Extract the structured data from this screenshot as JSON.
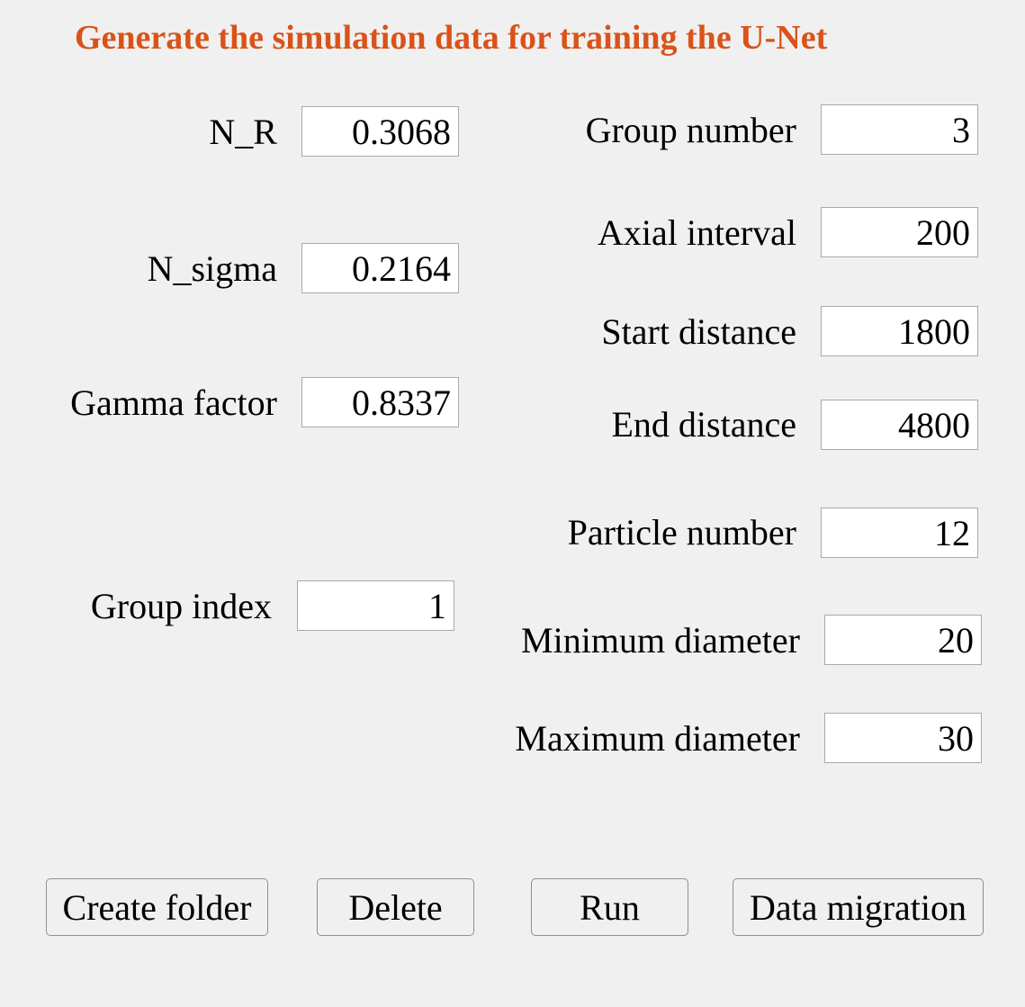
{
  "title": "Generate the simulation data for training the U-Net",
  "left_params": {
    "n_r": {
      "label": "N_R",
      "value": "0.3068"
    },
    "n_sigma": {
      "label": "N_sigma",
      "value": "0.2164"
    },
    "gamma_factor": {
      "label": "Gamma factor",
      "value": "0.8337"
    },
    "group_index": {
      "label": "Group index",
      "value": "1"
    }
  },
  "right_params": {
    "group_number": {
      "label": "Group number",
      "value": "3"
    },
    "axial_interval": {
      "label": "Axial interval",
      "value": "200"
    },
    "start_distance": {
      "label": "Start distance",
      "value": "1800"
    },
    "end_distance": {
      "label": "End distance",
      "value": "4800"
    },
    "particle_number": {
      "label": "Particle number",
      "value": "12"
    },
    "minimum_diameter": {
      "label": "Minimum diameter",
      "value": "20"
    },
    "maximum_diameter": {
      "label": "Maximum diameter",
      "value": "30"
    }
  },
  "buttons": {
    "create_folder": "Create folder",
    "delete": "Delete",
    "run": "Run",
    "data_migration": "Data migration"
  }
}
